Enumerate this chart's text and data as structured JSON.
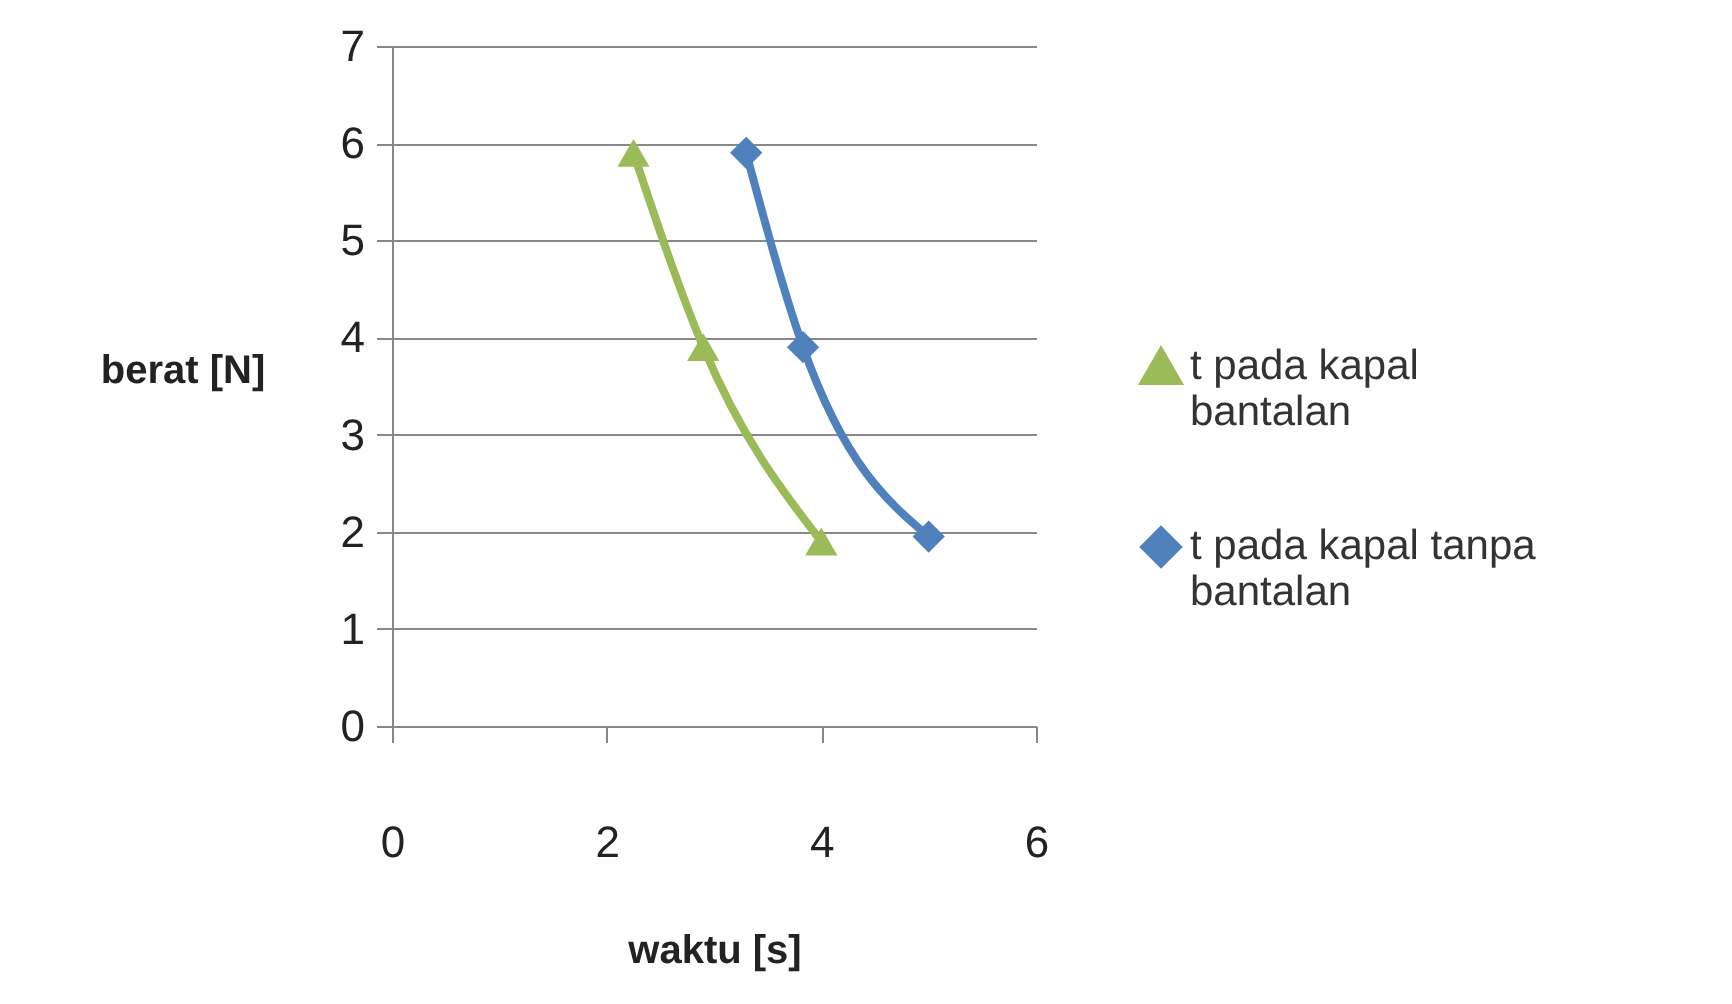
{
  "chart_data": {
    "type": "line",
    "xlabel": "waktu [s]",
    "ylabel": "berat [N]",
    "xlim": [
      0,
      6
    ],
    "xticks": [
      0,
      2,
      4,
      6
    ],
    "ylim": [
      0,
      7
    ],
    "yticks": [
      0,
      1,
      2,
      3,
      4,
      5,
      6,
      7
    ],
    "grid": "y",
    "legend": "right",
    "series": [
      {
        "name": "t pada kapal bantalan",
        "color": "#9bbb59",
        "marker": "triangle",
        "x": [
          2.25,
          2.9,
          4.0
        ],
        "values": [
          5.9,
          3.9,
          1.9
        ]
      },
      {
        "name": "t pada kapal tanpa bantalan",
        "color": "#4f81bd",
        "marker": "diamond",
        "x": [
          3.3,
          3.83,
          5.0
        ],
        "values": [
          5.9,
          3.9,
          1.95
        ]
      }
    ]
  }
}
